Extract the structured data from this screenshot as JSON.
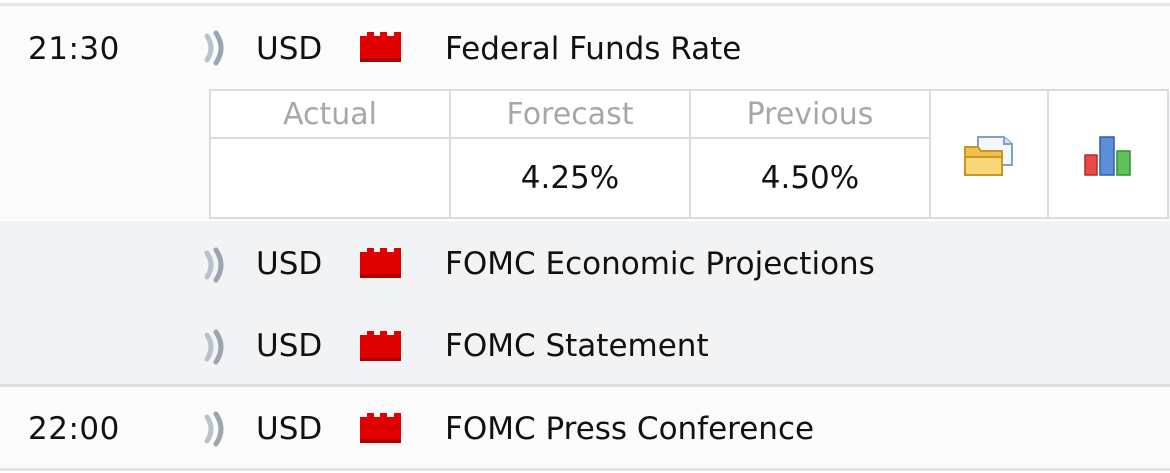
{
  "events": [
    {
      "time": "21:30",
      "currency": "USD",
      "event": "Federal Funds Rate",
      "sound_icon": "sound-icon",
      "impact_icon": "high-impact-icon"
    },
    {
      "time": "",
      "currency": "USD",
      "event": "FOMC Economic Projections",
      "sound_icon": "sound-icon",
      "impact_icon": "high-impact-icon"
    },
    {
      "time": "",
      "currency": "USD",
      "event": "FOMC Statement",
      "sound_icon": "sound-icon",
      "impact_icon": "high-impact-icon"
    },
    {
      "time": "22:00",
      "currency": "USD",
      "event": "FOMC Press Conference",
      "sound_icon": "sound-icon",
      "impact_icon": "high-impact-icon"
    }
  ],
  "detail": {
    "headers": {
      "actual": "Actual",
      "forecast": "Forecast",
      "previous": "Previous"
    },
    "values": {
      "actual": "",
      "forecast": "4.25%",
      "previous": "4.50%"
    },
    "icons": [
      "folder-icon",
      "bar-chart-icon"
    ]
  },
  "colors": {
    "impact_red": "#e00000",
    "header_text": "#a7a7a7",
    "row_grey": "#f1f3f5",
    "border": "#d9dcdf"
  }
}
